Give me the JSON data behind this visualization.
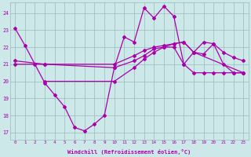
{
  "bg_color": "#cce8e8",
  "line_color": "#aa00aa",
  "grid_color": "#99bbbb",
  "xlabel": "Windchill (Refroidissement éolien,°C)",
  "xlim": [
    -0.5,
    23.5
  ],
  "ylim": [
    16.6,
    24.6
  ],
  "yticks": [
    17,
    18,
    19,
    20,
    21,
    22,
    23,
    24
  ],
  "xticks": [
    0,
    1,
    2,
    3,
    4,
    5,
    6,
    7,
    8,
    9,
    10,
    11,
    12,
    13,
    14,
    15,
    16,
    17,
    18,
    19,
    20,
    21,
    22,
    23
  ],
  "curve1_x": [
    0,
    1,
    2,
    3,
    4,
    5,
    6,
    7,
    8,
    9,
    10,
    11,
    12,
    13,
    14,
    15,
    16,
    17,
    18,
    19,
    20,
    21,
    22,
    23
  ],
  "curve1_y": [
    23.1,
    22.1,
    21.0,
    19.9,
    19.2,
    18.5,
    17.3,
    17.1,
    17.5,
    18.0,
    20.8,
    22.6,
    22.3,
    24.3,
    23.7,
    24.4,
    23.8,
    21.0,
    21.7,
    22.3,
    22.2,
    21.0,
    20.5,
    20.5
  ],
  "curve2_x": [
    3,
    10,
    12,
    13,
    14,
    15,
    16,
    17,
    18,
    19,
    20,
    21,
    22,
    23
  ],
  "curve2_y": [
    20.0,
    20.0,
    20.8,
    21.3,
    21.7,
    22.0,
    22.0,
    21.0,
    20.5,
    20.5,
    20.5,
    20.5,
    20.5,
    20.5
  ],
  "curve3_x": [
    0,
    3,
    10,
    12,
    13,
    14,
    15,
    16,
    17,
    18,
    19,
    20,
    21,
    22,
    23
  ],
  "curve3_y": [
    21.0,
    21.0,
    21.0,
    21.5,
    21.8,
    22.0,
    22.1,
    22.2,
    22.3,
    21.7,
    21.6,
    22.2,
    21.7,
    21.4,
    21.2
  ],
  "curve4_x": [
    0,
    3,
    10,
    12,
    13,
    14,
    15,
    16,
    17,
    18,
    23
  ],
  "curve4_y": [
    21.2,
    21.0,
    20.8,
    21.2,
    21.5,
    21.9,
    22.0,
    22.2,
    22.3,
    21.7,
    20.5
  ]
}
